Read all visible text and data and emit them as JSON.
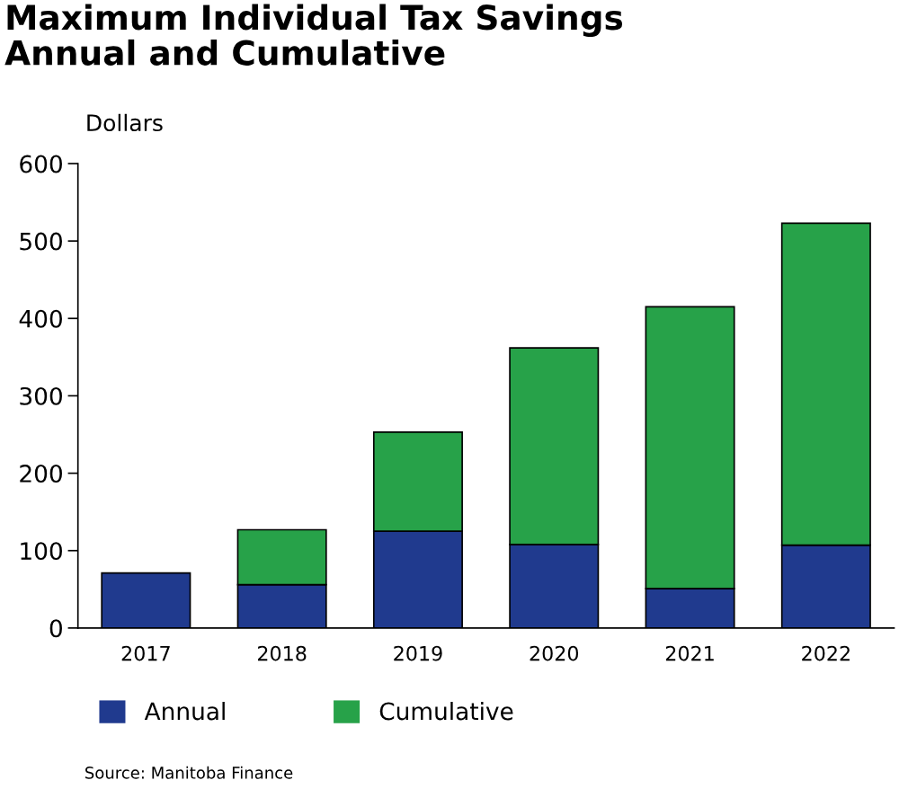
{
  "chart_data": {
    "type": "bar",
    "title": "Maximum Individual Tax Savings\nAnnual and Cumulative",
    "ylabel": "Dollars",
    "categories": [
      "2017",
      "2018",
      "2019",
      "2020",
      "2021",
      "2022"
    ],
    "series": [
      {
        "name": "Annual",
        "color": "#203a8e",
        "values": [
          71,
          56,
          125,
          108,
          51,
          107
        ]
      },
      {
        "name": "Cumulative",
        "color": "#27a249",
        "values": [
          null,
          71,
          128,
          254,
          364,
          416
        ]
      }
    ],
    "stacked": true,
    "ylim": [
      0,
      600
    ],
    "yticks": [
      0,
      100,
      200,
      300,
      400,
      500,
      600
    ],
    "grid": false,
    "legend": "bottom",
    "annotations": [
      "Source: Manitoba Finance"
    ]
  }
}
